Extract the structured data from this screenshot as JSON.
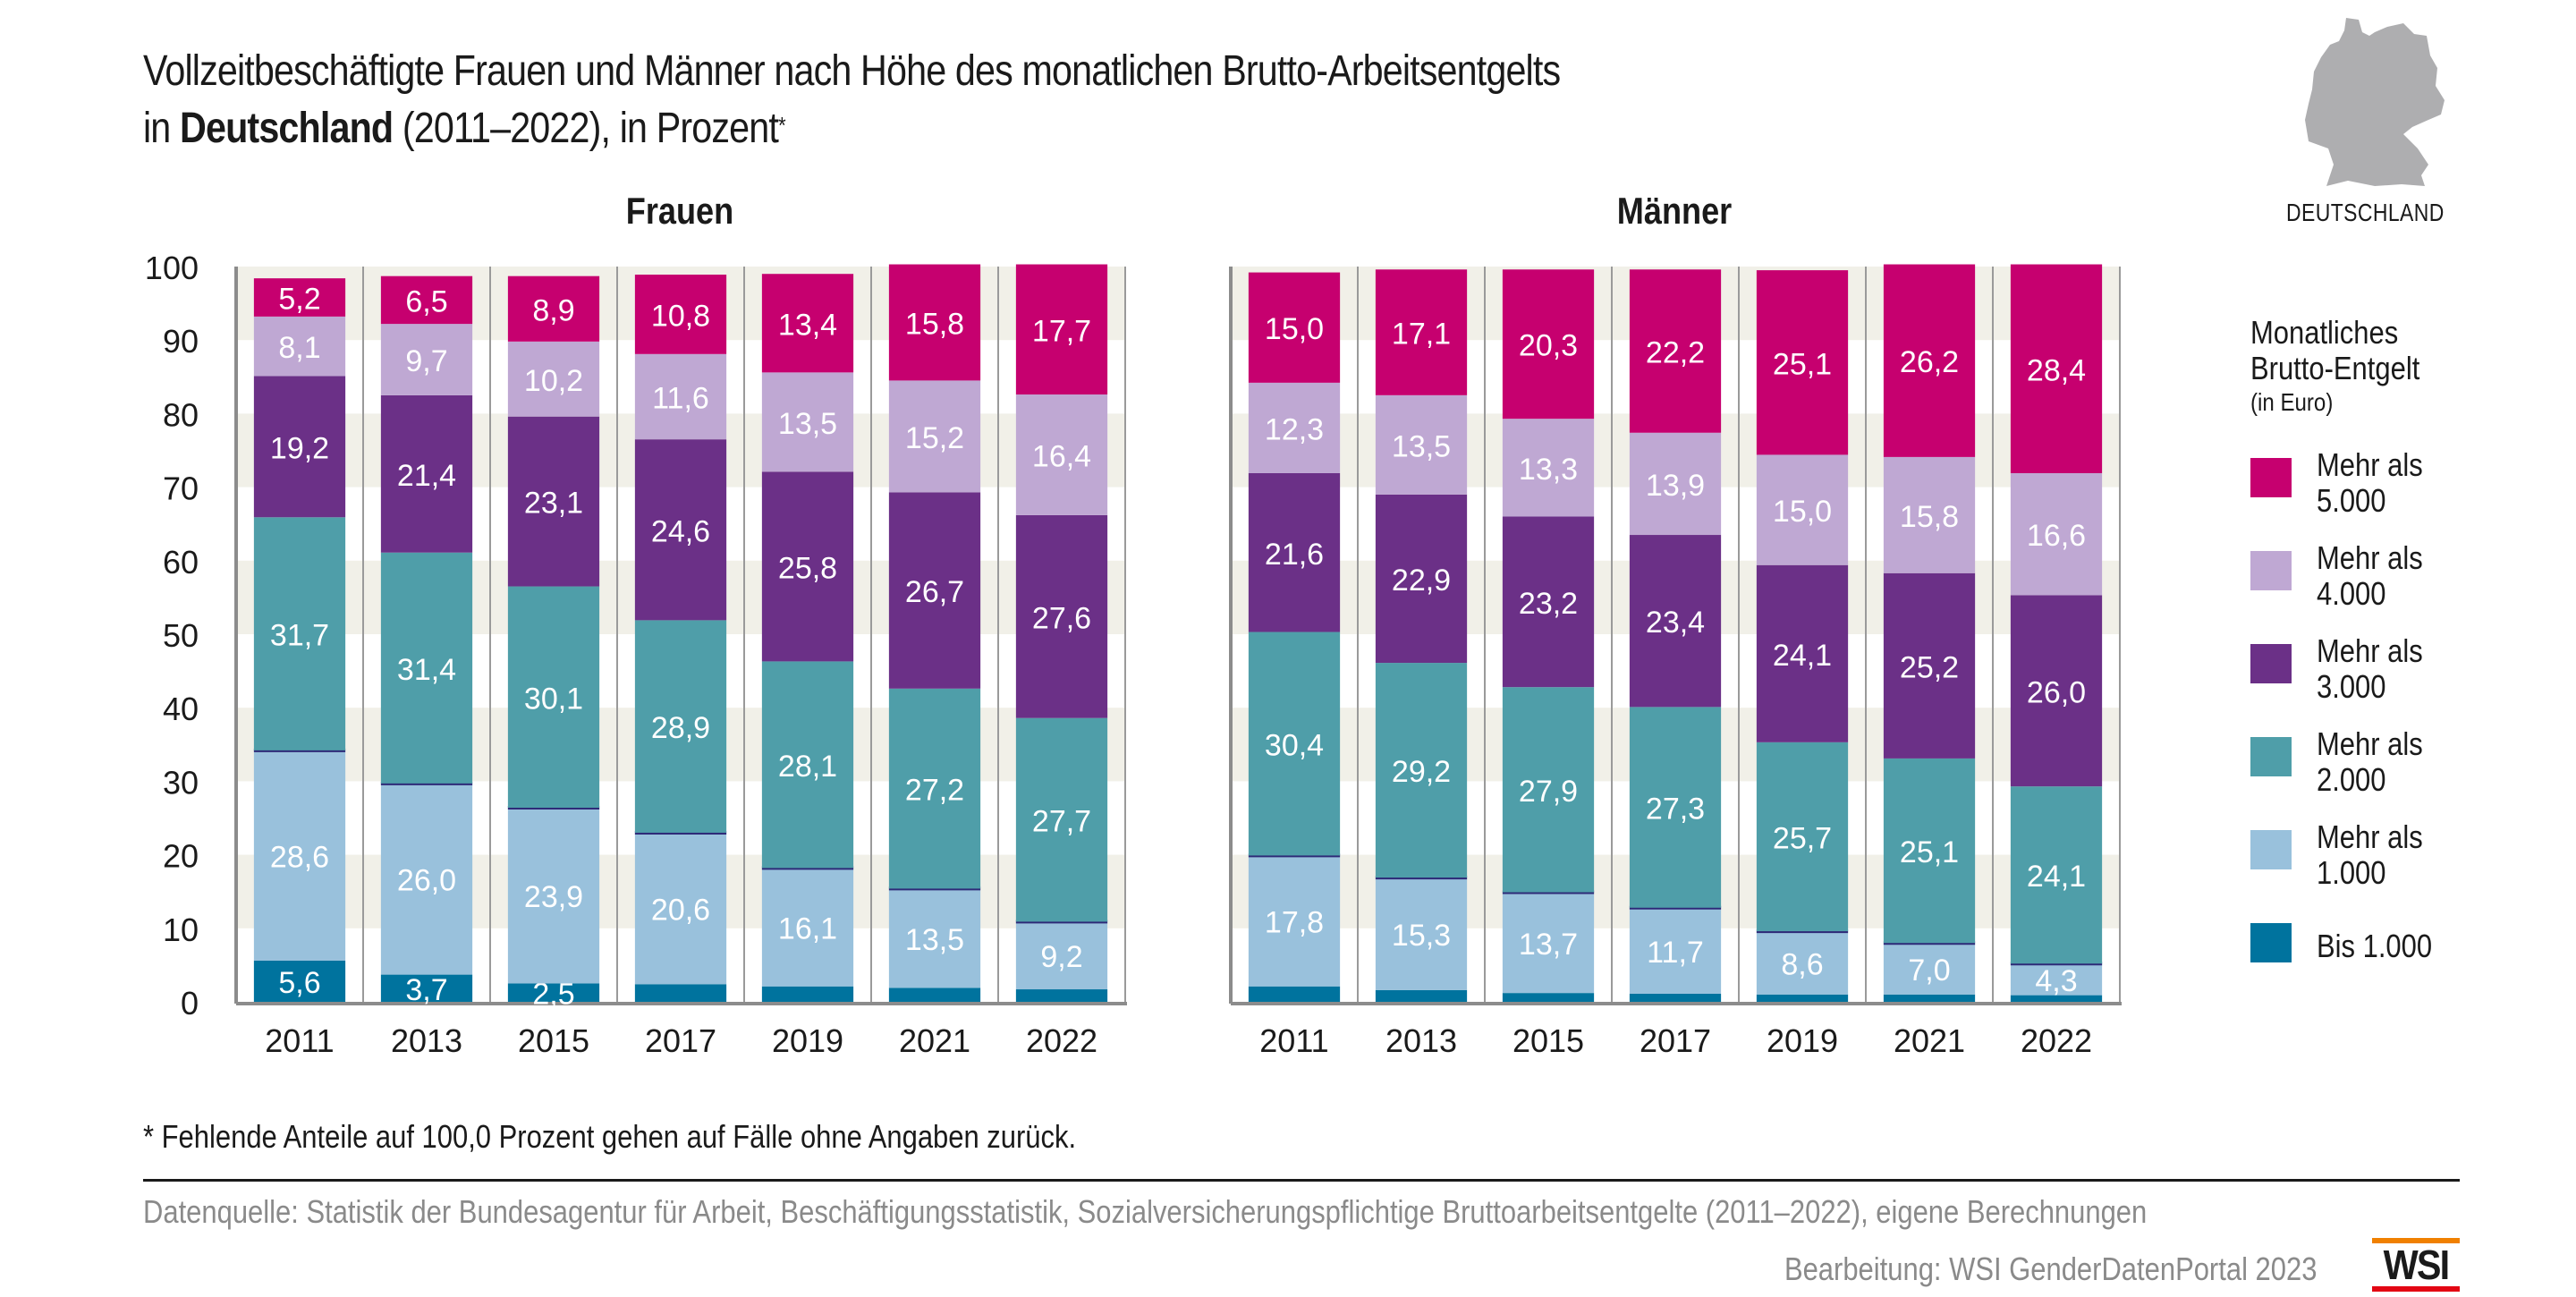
{
  "header": {
    "title_line1": "Vollzeitbeschäftigte Frauen und Männer nach Höhe des monatlichen Brutto-Arbeitsentgelts",
    "title_line2_prefix": "in ",
    "title_line2_bold": "Deutschland",
    "title_line2_suffix": " (2011–2022), in Prozent",
    "title_footnote_mark": "*"
  },
  "map": {
    "icon": "germany-map-icon",
    "label": "DEUTSCHLAND",
    "color": "#aeaeb0"
  },
  "legend": {
    "title_line1": "Monatliches",
    "title_line2": "Brutto-Entgelt",
    "subtitle": "(in Euro)",
    "items": [
      {
        "label": "Mehr als\n5.000",
        "color": "#c6006f"
      },
      {
        "label": "Mehr als\n4.000",
        "color": "#bfa8d3"
      },
      {
        "label": "Mehr als\n3.000",
        "color": "#6b3087"
      },
      {
        "label": "Mehr als\n2.000",
        "color": "#4f9ea9"
      },
      {
        "label": "Mehr als\n1.000",
        "color": "#99c1dc"
      },
      {
        "label": "Bis 1.000",
        "color": "#00739e"
      }
    ]
  },
  "footer": {
    "footnote": "* Fehlende Anteile auf 100,0 Prozent gehen auf Fälle ohne Angaben zurück.",
    "source": "Datenquelle: Statistik der Bundesagentur für Arbeit, Beschäftigungsstatistik, Sozialversicherungspflichtige Bruttoarbeitsentgelte (2011–2022), eigene Berechnungen",
    "credit": "Bearbeitung: WSI GenderDatenPortal 2023",
    "logo_text": "WSI"
  },
  "chart_data": [
    {
      "type": "bar",
      "stacked": true,
      "title": "Frauen",
      "xlabel": "",
      "ylabel": "",
      "ylim": [
        0,
        100
      ],
      "yticks": [
        "0",
        "10",
        "20",
        "30",
        "40",
        "50",
        "60",
        "70",
        "80",
        "90",
        "100"
      ],
      "grid": "alternating bands",
      "legend_position": "right",
      "categories": [
        "2011",
        "2013",
        "2015",
        "2017",
        "2019",
        "2021",
        "2022"
      ],
      "series": [
        {
          "name": "Bis 1.000",
          "values": [
            5.6,
            3.7,
            2.5,
            2.4,
            2.1,
            1.9,
            1.7
          ],
          "labels": [
            "5,6",
            "3,7",
            "2,5",
            "",
            "",
            "",
            ""
          ]
        },
        {
          "name": "Mehr als 1.000",
          "values": [
            28.6,
            26.0,
            23.9,
            20.6,
            16.1,
            13.5,
            9.2
          ],
          "labels": [
            "28,6",
            "26,0",
            "23,9",
            "20,6",
            "16,1",
            "13,5",
            "9,2"
          ]
        },
        {
          "name": "Mehr als 2.000",
          "values": [
            31.7,
            31.4,
            30.1,
            28.9,
            28.1,
            27.2,
            27.7
          ],
          "labels": [
            "31,7",
            "31,4",
            "30,1",
            "28,9",
            "28,1",
            "27,2",
            "27,7"
          ]
        },
        {
          "name": "Mehr als 3.000",
          "values": [
            19.2,
            21.4,
            23.1,
            24.6,
            25.8,
            26.7,
            27.6
          ],
          "labels": [
            "19,2",
            "21,4",
            "23,1",
            "24,6",
            "25,8",
            "26,7",
            "27,6"
          ]
        },
        {
          "name": "Mehr als 4.000",
          "values": [
            8.1,
            9.7,
            10.2,
            11.6,
            13.5,
            15.2,
            16.4
          ],
          "labels": [
            "8,1",
            "9,7",
            "10,2",
            "11,6",
            "13,5",
            "15,2",
            "16,4"
          ]
        },
        {
          "name": "Mehr als 5.000",
          "values": [
            5.2,
            6.5,
            8.9,
            10.8,
            13.4,
            15.8,
            17.7
          ],
          "labels": [
            "5,2",
            "6,5",
            "8,9",
            "10,8",
            "13,4",
            "15,8",
            "17,7"
          ]
        }
      ]
    },
    {
      "type": "bar",
      "stacked": true,
      "title": "Männer",
      "xlabel": "",
      "ylabel": "",
      "ylim": [
        0,
        100
      ],
      "grid": "alternating bands",
      "categories": [
        "2011",
        "2013",
        "2015",
        "2017",
        "2019",
        "2021",
        "2022"
      ],
      "series": [
        {
          "name": "Bis 1.000",
          "values": [
            2.1,
            1.6,
            1.2,
            1.1,
            1.0,
            1.0,
            0.9
          ],
          "labels": [
            "",
            "",
            "",
            "",
            "",
            "",
            ""
          ]
        },
        {
          "name": "Mehr als 1.000",
          "values": [
            17.8,
            15.3,
            13.7,
            11.7,
            8.6,
            7.0,
            4.3
          ],
          "labels": [
            "17,8",
            "15,3",
            "13,7",
            "11,7",
            "8,6",
            "7,0",
            "4,3"
          ]
        },
        {
          "name": "Mehr als 2.000",
          "values": [
            30.4,
            29.2,
            27.9,
            27.3,
            25.7,
            25.1,
            24.1
          ],
          "labels": [
            "30,4",
            "29,2",
            "27,9",
            "27,3",
            "25,7",
            "25,1",
            "24,1"
          ]
        },
        {
          "name": "Mehr als 3.000",
          "values": [
            21.6,
            22.9,
            23.2,
            23.4,
            24.1,
            25.2,
            26.0
          ],
          "labels": [
            "21,6",
            "22,9",
            "23,2",
            "23,4",
            "24,1",
            "25,2",
            "26,0"
          ]
        },
        {
          "name": "Mehr als 4.000",
          "values": [
            12.3,
            13.5,
            13.3,
            13.9,
            15.0,
            15.8,
            16.6
          ],
          "labels": [
            "12,3",
            "13,5",
            "13,3",
            "13,9",
            "15,0",
            "15,8",
            "16,6"
          ]
        },
        {
          "name": "Mehr als 5.000",
          "values": [
            15.0,
            17.1,
            20.3,
            22.2,
            25.1,
            26.2,
            28.4
          ],
          "labels": [
            "15,0",
            "17,1",
            "20,3",
            "22,2",
            "25,1",
            "26,2",
            "28,4"
          ]
        }
      ]
    }
  ],
  "style": {
    "band_color": "#f1f0e8",
    "separator_color": "#2e2a78",
    "axis_color": "#8c8c8c"
  }
}
